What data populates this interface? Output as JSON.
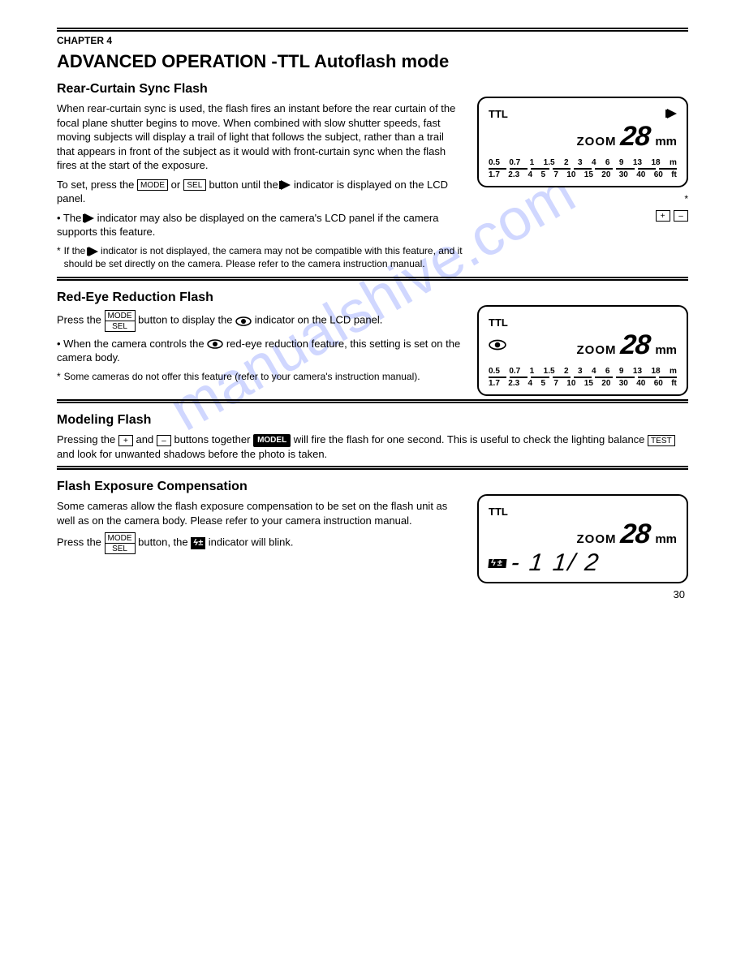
{
  "page": {
    "chapter": "CHAPTER 4",
    "title": "ADVANCED OPERATION -TTL Autoflash mode",
    "number": "30",
    "watermark": "manualshive.com"
  },
  "lcd_common": {
    "ttl_label": "TTL",
    "zoom_word": "ZOOM",
    "zoom_value": "28",
    "zoom_unit": "mm",
    "scale_top": [
      "0.5",
      "0.7",
      "1",
      "1.5",
      "2",
      "3",
      "4",
      "6",
      "9",
      "13",
      "18",
      "m"
    ],
    "scale_bot": [
      "1.7",
      "2.3",
      "4",
      "5",
      "7",
      "10",
      "15",
      "20",
      "30",
      "40",
      "60",
      "ft"
    ]
  },
  "s1": {
    "title": "Rear-Curtain Sync Flash",
    "intro": "When rear-curtain sync is used, the flash fires an instant before the rear curtain of the focal plane shutter begins to move. When combined with slow shutter speeds, fast moving subjects will display a trail of light that follows the subject, rather than a trail that appears in front of the subject as it would with front-curtain sync when the flash fires at the start of the exposure.",
    "step1_pre": "To set, press the",
    "step1_btn1": "MODE",
    "step1_mid1": "or",
    "step1_btn2": "SEL",
    "step1_mid2": "button until the",
    "step1_post": "indicator is displayed on the LCD panel.",
    "note1_pre": "• The",
    "note1_post": "indicator may also be displayed on the camera's LCD panel if the camera supports this feature.",
    "foot_star": "*",
    "foot_pre": "If the",
    "foot_post": "indicator is not displayed, the camera may not be compatible with this feature, and it should be set directly on the camera. Please refer to the camera instruction manual."
  },
  "s2": {
    "title": "Red-Eye Reduction Flash",
    "step_preA": "Press the",
    "step_btn_top": "MODE",
    "step_btn_bot": "SEL",
    "step_midA": "button to display the",
    "step_midB": "indicator on the LCD panel.",
    "note_pre": "• When the camera controls the",
    "note_post": "red-eye reduction feature, this setting is set on the camera body.",
    "foot_star": "*",
    "foot_text": "Some cameras do not offer this feature (refer to your camera's instruction manual)."
  },
  "s3": {
    "title": "Modeling Flash",
    "p1_pre": "Pressing the",
    "p1_btnA": "+",
    "p1_mid1": "and",
    "p1_btnB": "–",
    "p1_mid2": "buttons together",
    "p1_badge": "MODEL",
    "p1_post": "will fire the flash for one second. This is useful to check the lighting balance",
    "p1_btnC": "TEST",
    "p1_tail": "and look for unwanted shadows before the photo is taken."
  },
  "s4": {
    "title": "Flash Exposure Compensation",
    "intro": "Some cameras allow the flash exposure compensation to be set on the flash unit as well as on the camera body. Please refer to your camera instruction manual.",
    "step_pre": "Press the",
    "step_btn_top": "MODE",
    "step_btn_bot": "SEL",
    "step_mid": "button, the",
    "step_post": "indicator will blink.",
    "lcd_comp_value": "- 1  1/ 2"
  }
}
